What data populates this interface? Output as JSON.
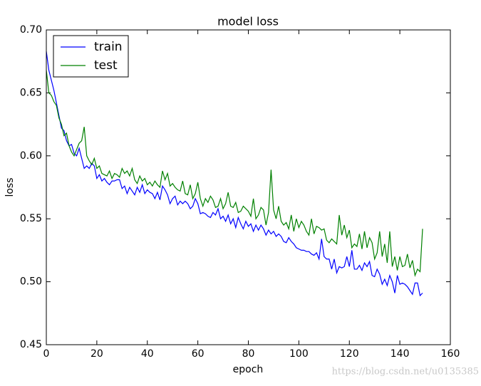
{
  "chart_data": {
    "type": "line",
    "title": "model loss",
    "x_label": "epoch",
    "y_label": "loss",
    "watermark": "https://blog.csdn.net/u0135385",
    "legend": "upper left",
    "x": [
      0,
      1,
      2,
      3,
      4,
      5,
      6,
      7,
      8,
      9,
      10,
      11,
      12,
      13,
      14,
      15,
      16,
      17,
      18,
      19,
      20,
      21,
      22,
      23,
      24,
      25,
      26,
      27,
      28,
      29,
      30,
      31,
      32,
      33,
      34,
      35,
      36,
      37,
      38,
      39,
      40,
      41,
      42,
      43,
      44,
      45,
      46,
      47,
      48,
      49,
      50,
      51,
      52,
      53,
      54,
      55,
      56,
      57,
      58,
      59,
      60,
      61,
      62,
      63,
      64,
      65,
      66,
      67,
      68,
      69,
      70,
      71,
      72,
      73,
      74,
      75,
      76,
      77,
      78,
      79,
      80,
      81,
      82,
      83,
      84,
      85,
      86,
      87,
      88,
      89,
      90,
      91,
      92,
      93,
      94,
      95,
      96,
      97,
      98,
      99,
      100,
      101,
      102,
      103,
      104,
      105,
      106,
      107,
      108,
      109,
      110,
      111,
      112,
      113,
      114,
      115,
      116,
      117,
      118,
      119,
      120,
      121,
      122,
      123,
      124,
      125,
      126,
      127,
      128,
      129,
      130,
      131,
      132,
      133,
      134,
      135,
      136,
      137,
      138,
      139,
      140,
      141,
      142,
      143,
      144,
      145,
      146,
      147,
      148,
      149
    ],
    "series": [
      {
        "name": "train",
        "color": "#0000ff",
        "values": [
          0.683,
          0.668,
          0.66,
          0.652,
          0.642,
          0.632,
          0.622,
          0.62,
          0.612,
          0.608,
          0.609,
          0.602,
          0.6,
          0.606,
          0.598,
          0.59,
          0.592,
          0.59,
          0.594,
          0.592,
          0.582,
          0.585,
          0.58,
          0.582,
          0.579,
          0.577,
          0.58,
          0.58,
          0.581,
          0.581,
          0.574,
          0.576,
          0.57,
          0.575,
          0.572,
          0.569,
          0.575,
          0.571,
          0.577,
          0.57,
          0.573,
          0.571,
          0.57,
          0.566,
          0.571,
          0.565,
          0.576,
          0.573,
          0.569,
          0.562,
          0.566,
          0.568,
          0.561,
          0.564,
          0.562,
          0.564,
          0.562,
          0.558,
          0.56,
          0.566,
          0.562,
          0.554,
          0.555,
          0.554,
          0.552,
          0.551,
          0.555,
          0.553,
          0.558,
          0.55,
          0.552,
          0.548,
          0.553,
          0.546,
          0.55,
          0.543,
          0.551,
          0.546,
          0.542,
          0.548,
          0.544,
          0.546,
          0.54,
          0.545,
          0.541,
          0.545,
          0.542,
          0.537,
          0.541,
          0.538,
          0.54,
          0.536,
          0.538,
          0.536,
          0.532,
          0.531,
          0.535,
          0.532,
          0.53,
          0.527,
          0.526,
          0.525,
          0.525,
          0.524,
          0.524,
          0.522,
          0.521,
          0.523,
          0.518,
          0.534,
          0.52,
          0.518,
          0.518,
          0.51,
          0.518,
          0.507,
          0.512,
          0.511,
          0.512,
          0.52,
          0.512,
          0.525,
          0.51,
          0.51,
          0.513,
          0.509,
          0.515,
          0.512,
          0.516,
          0.505,
          0.504,
          0.51,
          0.506,
          0.498,
          0.502,
          0.497,
          0.505,
          0.5,
          0.491,
          0.505,
          0.498,
          0.499,
          0.498,
          0.496,
          0.493,
          0.49,
          0.499,
          0.499,
          0.489,
          0.491
        ]
      },
      {
        "name": "test",
        "color": "#008000",
        "values": [
          0.668,
          0.65,
          0.648,
          0.643,
          0.64,
          0.63,
          0.625,
          0.616,
          0.618,
          0.608,
          0.603,
          0.6,
          0.605,
          0.61,
          0.612,
          0.623,
          0.6,
          0.596,
          0.593,
          0.598,
          0.59,
          0.592,
          0.586,
          0.585,
          0.584,
          0.588,
          0.582,
          0.586,
          0.585,
          0.583,
          0.59,
          0.586,
          0.588,
          0.584,
          0.59,
          0.581,
          0.578,
          0.584,
          0.58,
          0.582,
          0.577,
          0.579,
          0.576,
          0.58,
          0.577,
          0.575,
          0.588,
          0.581,
          0.586,
          0.576,
          0.578,
          0.575,
          0.573,
          0.572,
          0.58,
          0.57,
          0.569,
          0.577,
          0.566,
          0.57,
          0.579,
          0.566,
          0.56,
          0.566,
          0.563,
          0.568,
          0.565,
          0.559,
          0.56,
          0.566,
          0.558,
          0.562,
          0.571,
          0.56,
          0.559,
          0.563,
          0.555,
          0.556,
          0.56,
          0.558,
          0.556,
          0.552,
          0.566,
          0.55,
          0.553,
          0.559,
          0.557,
          0.545,
          0.555,
          0.589,
          0.557,
          0.55,
          0.56,
          0.548,
          0.545,
          0.547,
          0.542,
          0.553,
          0.54,
          0.55,
          0.543,
          0.548,
          0.545,
          0.54,
          0.537,
          0.55,
          0.538,
          0.544,
          0.543,
          0.541,
          0.542,
          0.533,
          0.531,
          0.534,
          0.532,
          0.53,
          0.553,
          0.537,
          0.545,
          0.535,
          0.541,
          0.527,
          0.53,
          0.528,
          0.538,
          0.526,
          0.54,
          0.527,
          0.535,
          0.531,
          0.518,
          0.523,
          0.54,
          0.52,
          0.53,
          0.515,
          0.54,
          0.512,
          0.52,
          0.509,
          0.52,
          0.512,
          0.513,
          0.522,
          0.511,
          0.517,
          0.505,
          0.51,
          0.508,
          0.542
        ]
      }
    ],
    "xlim": [
      0,
      160
    ],
    "xticks": [
      0,
      20,
      40,
      60,
      80,
      100,
      120,
      140,
      160
    ],
    "ylim": [
      0.45,
      0.7
    ],
    "yticks": [
      0.45,
      {
        "value": 0.5,
        "label": "0.50"
      },
      0.55,
      {
        "value": 0.6,
        "label": "0.60"
      },
      0.65,
      {
        "value": 0.7,
        "label": "0.70"
      }
    ]
  }
}
